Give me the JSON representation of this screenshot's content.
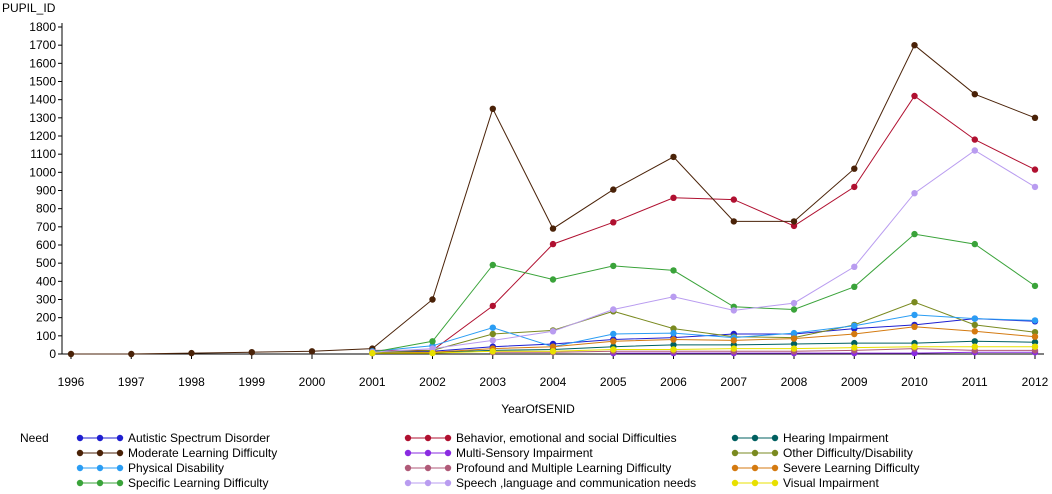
{
  "chart_data": {
    "type": "line",
    "ylabel": "PUPIL_ID",
    "xlabel": "YearOfSENID",
    "legend_title": "Need",
    "legend_position": "bottom",
    "grid": false,
    "ylim": [
      0,
      1800
    ],
    "yticks": [
      0,
      100,
      200,
      300,
      400,
      500,
      600,
      700,
      800,
      900,
      1000,
      1100,
      1200,
      1300,
      1400,
      1500,
      1600,
      1700,
      1800
    ],
    "x": [
      "1996",
      "1997",
      "1998",
      "1999",
      "2000",
      "2001",
      "2002",
      "2003",
      "2004",
      "2005",
      "2006",
      "2007",
      "2008",
      "2009",
      "2010",
      "2011",
      "2012"
    ],
    "series": [
      {
        "name": "Autistic Spectrum Disorder",
        "color": "#1f1fd0",
        "values": [
          null,
          null,
          null,
          null,
          null,
          10,
          15,
          40,
          55,
          80,
          90,
          110,
          110,
          140,
          160,
          195,
          180
        ]
      },
      {
        "name": "Behavior, emotional and social Difficulties",
        "color": "#b01030",
        "values": [
          null,
          null,
          null,
          null,
          null,
          20,
          20,
          265,
          605,
          725,
          860,
          850,
          705,
          920,
          1420,
          1180,
          1015
        ]
      },
      {
        "name": "Hearing Impairment",
        "color": "#006060",
        "values": [
          null,
          null,
          null,
          null,
          null,
          5,
          10,
          20,
          25,
          40,
          50,
          50,
          55,
          60,
          60,
          70,
          65
        ]
      },
      {
        "name": "Moderate Learning Difficulty",
        "color": "#4a2208",
        "values": [
          0,
          0,
          5,
          10,
          15,
          30,
          300,
          1350,
          690,
          905,
          1085,
          730,
          730,
          1020,
          1700,
          1430,
          1300
        ]
      },
      {
        "name": "Multi-Sensory Impairment",
        "color": "#8a2be2",
        "values": [
          null,
          null,
          null,
          null,
          null,
          null,
          null,
          null,
          null,
          5,
          5,
          5,
          5,
          5,
          5,
          10,
          10
        ]
      },
      {
        "name": "Other Difficulty/Disability",
        "color": "#7a8a20",
        "values": [
          null,
          null,
          null,
          null,
          null,
          10,
          20,
          110,
          130,
          235,
          140,
          95,
          90,
          160,
          285,
          160,
          120
        ]
      },
      {
        "name": "Physical Disability",
        "color": "#2a9df4",
        "values": [
          null,
          null,
          null,
          null,
          null,
          15,
          45,
          145,
          40,
          110,
          115,
          90,
          115,
          155,
          215,
          195,
          185
        ]
      },
      {
        "name": "Profound and Multiple Learning Difficulty",
        "color": "#b05a78",
        "values": [
          null,
          null,
          null,
          null,
          null,
          null,
          null,
          10,
          10,
          15,
          15,
          15,
          15,
          20,
          30,
          20,
          20
        ]
      },
      {
        "name": "Severe Learning Difficulty",
        "color": "#d47a10",
        "values": [
          null,
          null,
          null,
          null,
          null,
          5,
          10,
          30,
          40,
          70,
          80,
          75,
          85,
          110,
          150,
          125,
          95
        ]
      },
      {
        "name": "Specific Learning Difficulty",
        "color": "#3aa33a",
        "values": [
          null,
          null,
          null,
          null,
          null,
          10,
          70,
          490,
          410,
          485,
          460,
          260,
          245,
          370,
          660,
          605,
          375
        ]
      },
      {
        "name": "Speech ,language and communication needs",
        "color": "#b99cf0",
        "values": [
          null,
          null,
          null,
          null,
          null,
          10,
          30,
          75,
          125,
          245,
          315,
          240,
          280,
          480,
          885,
          1120,
          920
        ]
      },
      {
        "name": "Visual Impairment",
        "color": "#e8e000",
        "values": [
          null,
          null,
          null,
          null,
          null,
          5,
          5,
          15,
          15,
          25,
          25,
          30,
          30,
          35,
          40,
          40,
          40
        ]
      }
    ]
  }
}
